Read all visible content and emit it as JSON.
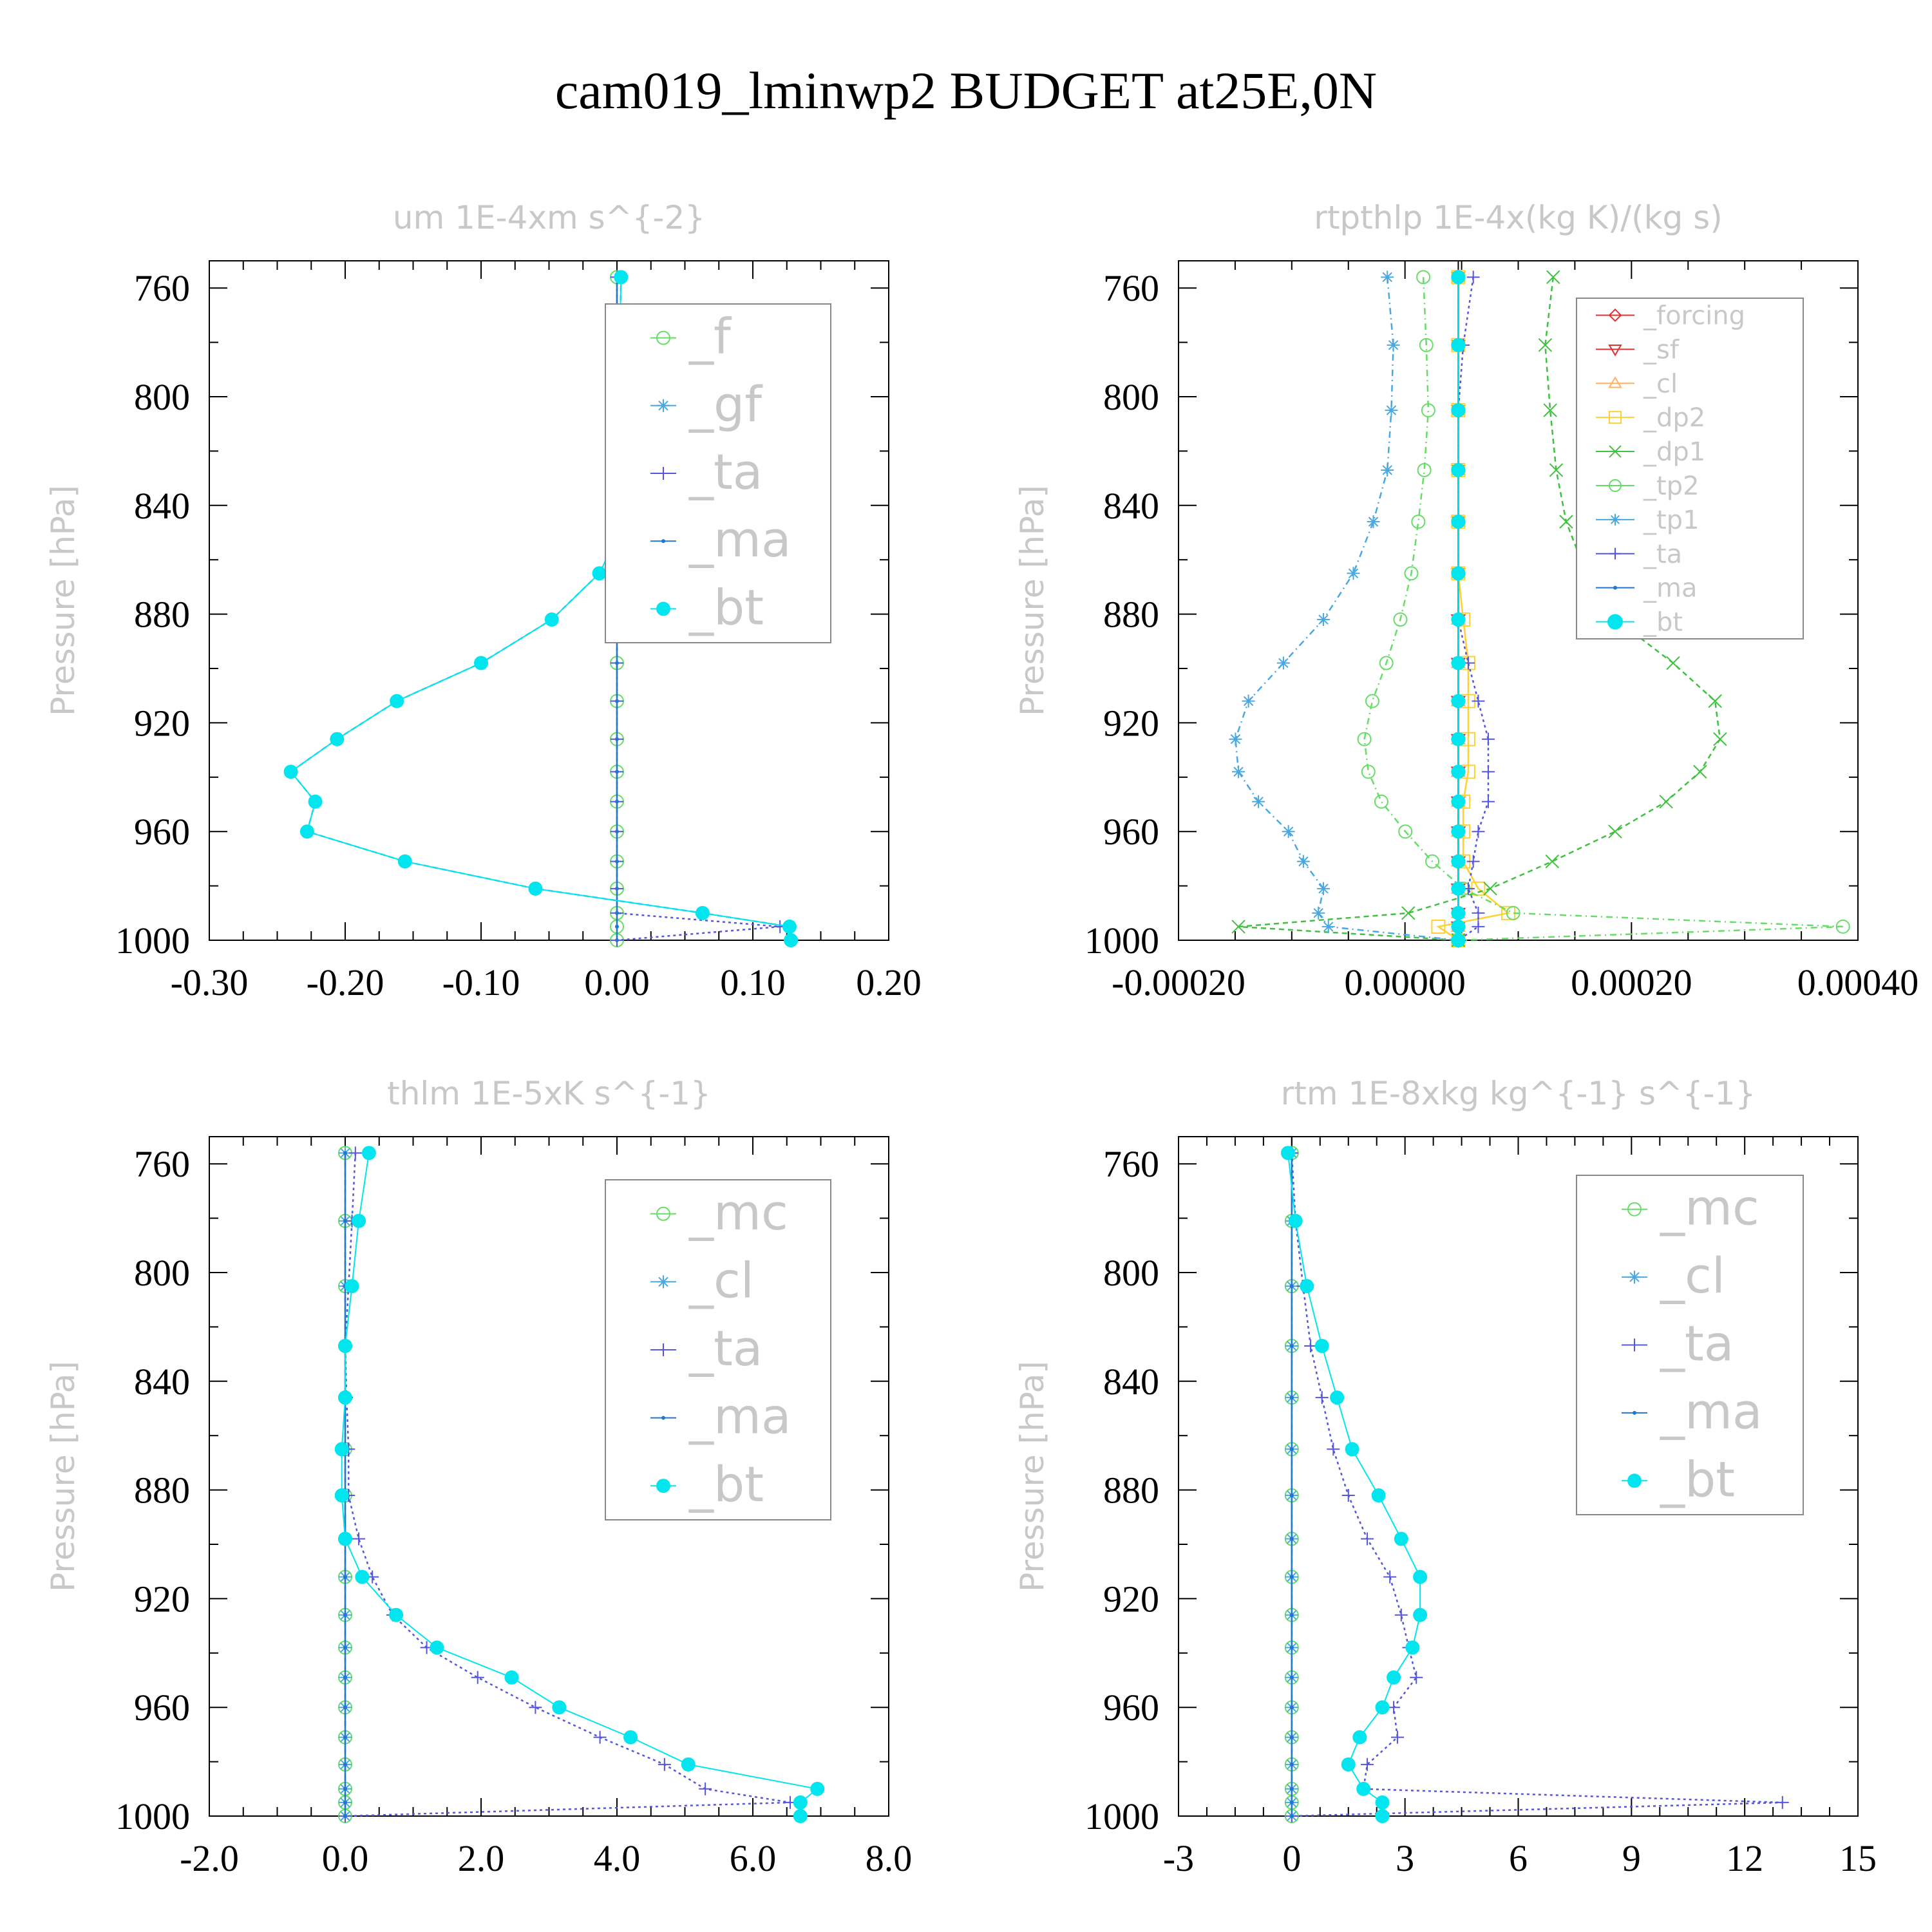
{
  "title": "cam019_lminwp2  BUDGET at25E,0N",
  "chart_data": [
    {
      "type": "line",
      "subtitle": "um  1E-4xm s^{-2}",
      "ylabel": "Pressure [hPa]",
      "ylim": [
        1000,
        750
      ],
      "yticks": [
        760,
        800,
        840,
        880,
        920,
        960,
        1000
      ],
      "xlim": [
        -0.3,
        0.2
      ],
      "xticks": [
        "-0.30",
        "-0.20",
        "-0.10",
        "0.00",
        "0.10",
        "0.20"
      ],
      "legend_position": "top-right",
      "legend_size": "large",
      "pressure": [
        756,
        781,
        805,
        827,
        846,
        865,
        882,
        898,
        912,
        926,
        938,
        949,
        960,
        971,
        981,
        990,
        995,
        1000
      ],
      "series": [
        {
          "name": "_f",
          "color": "#66dd66",
          "dash": "8,6",
          "marker": "circle-open",
          "values": [
            0,
            0,
            0,
            0,
            0,
            0,
            0,
            0,
            0,
            0,
            0,
            0,
            0,
            0,
            0,
            0,
            0,
            0
          ]
        },
        {
          "name": "_gf",
          "color": "#4aa8e0",
          "dash": "8,6",
          "marker": "star",
          "values": [
            0.003,
            0.002,
            0.01,
            0.015,
            0.006,
            -0.013,
            -0.048,
            -0.1,
            -0.162,
            -0.206,
            -0.24,
            -0.222,
            -0.228,
            -0.156,
            -0.06,
            0.063,
            0.127,
            0.128
          ]
        },
        {
          "name": "_ta",
          "color": "#5555dd",
          "dash": "4,5",
          "marker": "plus",
          "values": [
            0,
            0,
            0,
            0,
            0,
            0,
            0,
            0,
            0,
            0,
            0,
            0,
            0,
            0,
            0,
            0,
            0.12,
            0
          ]
        },
        {
          "name": "_ma",
          "color": "#2277cc",
          "dash": "",
          "marker": "dot",
          "values": [
            0,
            0,
            0,
            0,
            0,
            0,
            0,
            0,
            0,
            0,
            0,
            0,
            0,
            0,
            0,
            0,
            0,
            0
          ]
        },
        {
          "name": "_bt",
          "color": "#00e5ee",
          "dash": "",
          "marker": "dot-filled",
          "values": [
            0.003,
            0.002,
            0.01,
            0.015,
            0.006,
            -0.013,
            -0.048,
            -0.1,
            -0.162,
            -0.206,
            -0.24,
            -0.222,
            -0.228,
            -0.156,
            -0.06,
            0.063,
            0.127,
            0.128
          ]
        }
      ]
    },
    {
      "type": "line",
      "subtitle": "rtpthlp  1E-4x(kg K)/(kg s)",
      "ylabel": "Pressure [hPa]",
      "ylim": [
        1000,
        750
      ],
      "yticks": [
        760,
        800,
        840,
        880,
        920,
        960,
        1000
      ],
      "xlim": [
        -0.00028,
        0.0004
      ],
      "xticks": [
        "-0.00020",
        "0.00000",
        "0.00020",
        "0.00040"
      ],
      "legend_position": "top-right",
      "legend_size": "small",
      "pressure": [
        756,
        781,
        805,
        827,
        846,
        865,
        882,
        898,
        912,
        926,
        938,
        949,
        960,
        971,
        981,
        990,
        995,
        1000
      ],
      "series": [
        {
          "name": "_forcing",
          "color": "#e03030",
          "dash": "",
          "marker": "diamond-open",
          "values": [
            0,
            0,
            0,
            0,
            0,
            0,
            0,
            0,
            0,
            0,
            0,
            0,
            0,
            0,
            0,
            0,
            0,
            0
          ]
        },
        {
          "name": "_sf",
          "color": "#e03030",
          "dash": "",
          "marker": "tri-down",
          "values": [
            0,
            0,
            0,
            0,
            0,
            0,
            0,
            0,
            0,
            0,
            0,
            0,
            0,
            0,
            0,
            0,
            0,
            0
          ]
        },
        {
          "name": "_cl",
          "color": "#ffb060",
          "dash": "8,6",
          "marker": "tri-up",
          "values": [
            0,
            0,
            0,
            0,
            0,
            0,
            0,
            0,
            0,
            0,
            0,
            0,
            0,
            0,
            0,
            0,
            0,
            0
          ]
        },
        {
          "name": "_dp2",
          "color": "#ffd030",
          "dash": "",
          "marker": "square-open",
          "values": [
            0,
            0,
            0,
            0,
            0,
            0,
            5e-06,
            1e-05,
            1e-05,
            1e-05,
            1e-05,
            5e-06,
            5e-06,
            5e-06,
            2e-05,
            5e-05,
            -2e-05,
            0
          ]
        },
        {
          "name": "_dp1",
          "color": "#3fc03f",
          "dash": "8,6",
          "marker": "x",
          "values": [
            9.5e-05,
            8.7e-05,
            9.2e-05,
            9.8e-05,
            0.000108,
            0.000128,
            0.000158,
            0.000215,
            0.000257,
            0.000262,
            0.000242,
            0.000208,
            0.000157,
            9.4e-05,
            3.2e-05,
            -5e-05,
            -0.00022,
            0
          ]
        },
        {
          "name": "_tp2",
          "color": "#66dd66",
          "dash": "10,6,2,6",
          "marker": "circle-open",
          "values": [
            -3.5e-05,
            -3.2e-05,
            -3e-05,
            -3.4e-05,
            -4e-05,
            -4.7e-05,
            -5.8e-05,
            -7.2e-05,
            -8.6e-05,
            -9.4e-05,
            -9e-05,
            -7.7e-05,
            -5.3e-05,
            -2.6e-05,
            5e-06,
            5.5e-05,
            0.000385,
            0
          ]
        },
        {
          "name": "_tp1",
          "color": "#4aa8e0",
          "dash": "10,6,2,6",
          "marker": "star",
          "values": [
            -7.1e-05,
            -6.5e-05,
            -6.7e-05,
            -7.1e-05,
            -8.5e-05,
            -0.000105,
            -0.000135,
            -0.000175,
            -0.00021,
            -0.000223,
            -0.00022,
            -0.0002,
            -0.00017,
            -0.000155,
            -0.000135,
            -0.00014,
            -0.00013,
            0
          ]
        },
        {
          "name": "_ta",
          "color": "#5555dd",
          "dash": "4,5",
          "marker": "plus",
          "values": [
            1.5e-05,
            5e-06,
            0,
            0,
            0,
            0,
            0,
            1e-05,
            2e-05,
            3e-05,
            3e-05,
            3e-05,
            2e-05,
            1.5e-05,
            1e-05,
            2e-05,
            2e-05,
            0
          ]
        },
        {
          "name": "_ma",
          "color": "#2277cc",
          "dash": "",
          "marker": "dot",
          "values": [
            0,
            0,
            0,
            0,
            0,
            0,
            0,
            0,
            0,
            0,
            0,
            0,
            0,
            0,
            0,
            0,
            0,
            0
          ]
        },
        {
          "name": "_bt",
          "color": "#00e5ee",
          "dash": "",
          "marker": "dot-filled",
          "values": [
            0,
            0,
            0,
            0,
            0,
            0,
            0,
            0,
            0,
            0,
            0,
            0,
            0,
            0,
            0,
            0,
            0,
            0
          ]
        }
      ]
    },
    {
      "type": "line",
      "subtitle": "thlm  1E-5xK s^{-1}",
      "ylabel": "Pressure [hPa]",
      "ylim": [
        1000,
        750
      ],
      "yticks": [
        760,
        800,
        840,
        880,
        920,
        960,
        1000
      ],
      "xlim": [
        -2.0,
        8.0
      ],
      "xticks": [
        "-2.0",
        "0.0",
        "2.0",
        "4.0",
        "6.0",
        "8.0"
      ],
      "legend_position": "top-right",
      "legend_size": "large",
      "pressure": [
        756,
        781,
        805,
        827,
        846,
        865,
        882,
        898,
        912,
        926,
        938,
        949,
        960,
        971,
        981,
        990,
        995,
        1000
      ],
      "series": [
        {
          "name": "_mc",
          "color": "#66dd66",
          "dash": "8,6",
          "marker": "circle-open",
          "values": [
            0,
            0,
            0,
            0,
            0,
            0,
            0,
            0,
            0,
            0,
            0,
            0,
            0,
            0,
            0,
            0,
            0,
            0
          ]
        },
        {
          "name": "_cl",
          "color": "#4aa8e0",
          "dash": "8,6",
          "marker": "star",
          "values": [
            0,
            0,
            0,
            0,
            0,
            0,
            0,
            0,
            0,
            0,
            0,
            0,
            0,
            0,
            0,
            0,
            0,
            0
          ]
        },
        {
          "name": "_ta",
          "color": "#5555dd",
          "dash": "4,5",
          "marker": "plus",
          "values": [
            0.15,
            0.1,
            0.05,
            0.0,
            0.02,
            0.05,
            0.05,
            0.2,
            0.4,
            0.7,
            1.2,
            1.95,
            2.8,
            3.75,
            4.7,
            5.3,
            6.55,
            0.0
          ]
        },
        {
          "name": "_ma",
          "color": "#2277cc",
          "dash": "",
          "marker": "dot",
          "values": [
            0,
            0,
            0,
            0,
            0,
            0,
            0,
            0,
            0,
            0,
            0,
            0,
            0,
            0,
            0,
            0,
            0,
            0
          ]
        },
        {
          "name": "_bt",
          "color": "#00e5ee",
          "dash": "",
          "marker": "dot-filled",
          "values": [
            0.35,
            0.2,
            0.1,
            0.0,
            0.0,
            -0.05,
            -0.05,
            0.0,
            0.25,
            0.75,
            1.35,
            2.45,
            3.15,
            4.2,
            5.05,
            6.95,
            6.7,
            6.7
          ]
        }
      ]
    },
    {
      "type": "line",
      "subtitle": "rtm  1E-8xkg kg^{-1} s^{-1}",
      "ylabel": "Pressure [hPa]",
      "ylim": [
        1000,
        750
      ],
      "yticks": [
        760,
        800,
        840,
        880,
        920,
        960,
        1000
      ],
      "xlim": [
        -3,
        15
      ],
      "xticks": [
        "-3",
        "0",
        "3",
        "6",
        "9",
        "12",
        "15"
      ],
      "legend_position": "top-right",
      "legend_size": "large",
      "pressure": [
        756,
        781,
        805,
        827,
        846,
        865,
        882,
        898,
        912,
        926,
        938,
        949,
        960,
        971,
        981,
        990,
        995,
        1000
      ],
      "series": [
        {
          "name": "_mc",
          "color": "#66dd66",
          "dash": "8,6",
          "marker": "circle-open",
          "values": [
            0,
            0,
            0,
            0,
            0,
            0,
            0,
            0,
            0,
            0,
            0,
            0,
            0,
            0,
            0,
            0,
            0,
            0
          ]
        },
        {
          "name": "_cl",
          "color": "#4aa8e0",
          "dash": "8,6",
          "marker": "star",
          "values": [
            0,
            0,
            0,
            0,
            0,
            0,
            0,
            0,
            0,
            0,
            0,
            0,
            0,
            0,
            0,
            0,
            0,
            0
          ]
        },
        {
          "name": "_ta",
          "color": "#5555dd",
          "dash": "4,5",
          "marker": "plus",
          "values": [
            0.0,
            0.1,
            0.3,
            0.5,
            0.8,
            1.1,
            1.5,
            2.0,
            2.6,
            2.9,
            3.1,
            3.3,
            2.7,
            2.8,
            2.0,
            1.9,
            13.0,
            0.0
          ]
        },
        {
          "name": "_ma",
          "color": "#2277cc",
          "dash": "",
          "marker": "dot",
          "values": [
            0,
            0,
            0,
            0,
            0,
            0,
            0,
            0,
            0,
            0,
            0,
            0,
            0,
            0,
            0,
            0,
            0,
            0
          ]
        },
        {
          "name": "_bt",
          "color": "#00e5ee",
          "dash": "",
          "marker": "dot-filled",
          "values": [
            -0.1,
            0.1,
            0.4,
            0.8,
            1.2,
            1.6,
            2.3,
            2.9,
            3.4,
            3.4,
            3.2,
            2.7,
            2.4,
            1.8,
            1.5,
            1.9,
            2.4,
            2.4
          ]
        }
      ]
    }
  ]
}
